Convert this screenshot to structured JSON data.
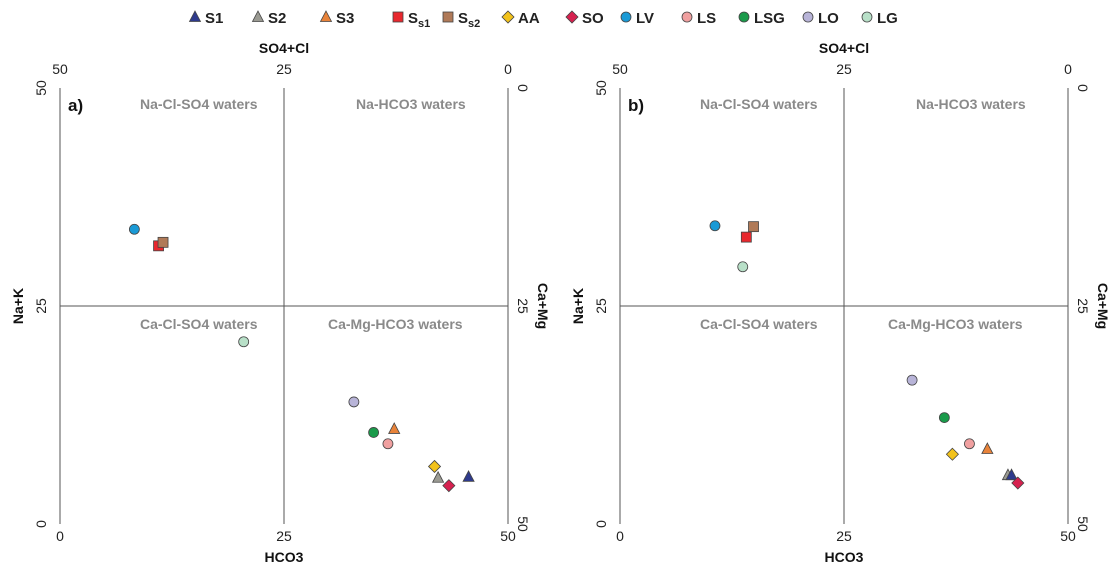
{
  "legend": [
    {
      "key": "S1",
      "label": "S1",
      "sub": "",
      "marker": "triangle",
      "color": "#2e3a8c"
    },
    {
      "key": "S2",
      "label": "S2",
      "sub": "",
      "marker": "triangle",
      "color": "#9a9a92"
    },
    {
      "key": "S3",
      "label": "S3",
      "sub": "",
      "marker": "triangle",
      "color": "#e8833a"
    },
    {
      "key": "Ss1",
      "label": "S",
      "sub": "s1",
      "marker": "square",
      "color": "#e8282e"
    },
    {
      "key": "Ss2",
      "label": "S",
      "sub": "s2",
      "marker": "square",
      "color": "#b07a58"
    },
    {
      "key": "AA",
      "label": "AA",
      "sub": "",
      "marker": "diamond",
      "color": "#f2c21b"
    },
    {
      "key": "SO",
      "label": "SO",
      "sub": "",
      "marker": "diamond",
      "color": "#d6214f"
    },
    {
      "key": "LV",
      "label": "LV",
      "sub": "",
      "marker": "circle",
      "color": "#1a9ad6"
    },
    {
      "key": "LS",
      "label": "LS",
      "sub": "",
      "marker": "circle",
      "color": "#f0a0a0"
    },
    {
      "key": "LSG",
      "label": "LSG",
      "sub": "",
      "marker": "circle",
      "color": "#1a9a4a"
    },
    {
      "key": "LO",
      "label": "LO",
      "sub": "",
      "marker": "circle",
      "color": "#b8b4d8"
    },
    {
      "key": "LG",
      "label": "LG",
      "sub": "",
      "marker": "circle",
      "color": "#b8e0c8"
    }
  ],
  "axes": {
    "top_title": "SO4+Cl",
    "bottom_title": "HCO3",
    "left_title": "Na+K",
    "right_title": "Ca+Mg",
    "range": [
      0,
      50
    ],
    "ticks": [
      "0",
      "25",
      "50"
    ]
  },
  "quadrant_labels": {
    "top_left": "Na-Cl-SO4 waters",
    "top_right": "Na-HCO3 waters",
    "bottom_left": "Ca-Cl-SO4 waters",
    "bottom_right": "Ca-Mg-HCO3 waters"
  },
  "chart_data": [
    {
      "type": "scatter",
      "panel": "a)",
      "xlabel": "HCO3",
      "ylabel": "Na+K",
      "top_label": "SO4+Cl",
      "right_label": "Ca+Mg",
      "xlim": [
        0,
        50
      ],
      "ylim": [
        0,
        50
      ],
      "points": [
        {
          "key": "LV",
          "x": 8.3,
          "y": 33.8
        },
        {
          "key": "Ss1",
          "x": 11.0,
          "y": 31.9
        },
        {
          "key": "Ss2",
          "x": 11.5,
          "y": 32.3
        },
        {
          "key": "LG",
          "x": 20.5,
          "y": 20.9
        },
        {
          "key": "LO",
          "x": 32.8,
          "y": 14.0
        },
        {
          "key": "LSG",
          "x": 35.0,
          "y": 10.5
        },
        {
          "key": "S3",
          "x": 37.3,
          "y": 10.9
        },
        {
          "key": "LS",
          "x": 36.6,
          "y": 9.2
        },
        {
          "key": "AA",
          "x": 41.8,
          "y": 6.6
        },
        {
          "key": "S2",
          "x": 42.2,
          "y": 5.3
        },
        {
          "key": "SO",
          "x": 43.4,
          "y": 4.4
        },
        {
          "key": "S1",
          "x": 45.6,
          "y": 5.4
        }
      ]
    },
    {
      "type": "scatter",
      "panel": "b)",
      "xlabel": "HCO3",
      "ylabel": "Na+K",
      "top_label": "SO4+Cl",
      "right_label": "Ca+Mg",
      "xlim": [
        0,
        50
      ],
      "ylim": [
        0,
        50
      ],
      "points": [
        {
          "key": "LV",
          "x": 10.6,
          "y": 34.2
        },
        {
          "key": "Ss1",
          "x": 14.1,
          "y": 32.9
        },
        {
          "key": "Ss2",
          "x": 14.9,
          "y": 34.1
        },
        {
          "key": "LG",
          "x": 13.7,
          "y": 29.5
        },
        {
          "key": "LO",
          "x": 32.6,
          "y": 16.5
        },
        {
          "key": "LSG",
          "x": 36.2,
          "y": 12.2
        },
        {
          "key": "LS",
          "x": 39.0,
          "y": 9.2
        },
        {
          "key": "S3",
          "x": 41.0,
          "y": 8.6
        },
        {
          "key": "AA",
          "x": 37.1,
          "y": 8.0
        },
        {
          "key": "S2",
          "x": 43.3,
          "y": 5.6
        },
        {
          "key": "S1",
          "x": 43.7,
          "y": 5.6
        },
        {
          "key": "SO",
          "x": 44.4,
          "y": 4.7
        }
      ]
    }
  ]
}
